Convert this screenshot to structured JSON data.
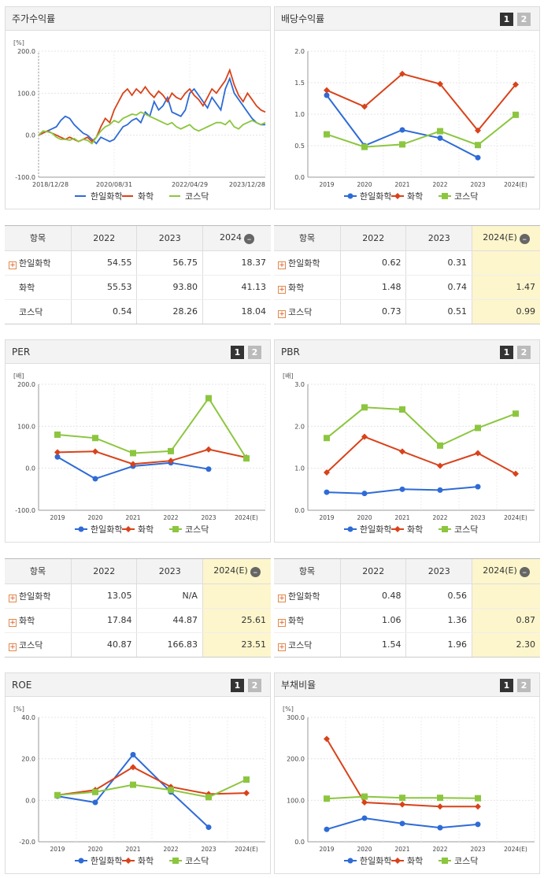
{
  "series_names": [
    "한일화학",
    "화학",
    "코스닥"
  ],
  "colors": {
    "a": "#2e6bd6",
    "b": "#d9421a",
    "c": "#8cc63f"
  },
  "panels": {
    "stock": {
      "title": "주가수익률",
      "unit": "[%]"
    },
    "div": {
      "title": "배당수익률",
      "page1": "1",
      "page2": "2"
    },
    "per": {
      "title": "PER",
      "unit": "[배]",
      "page1": "1",
      "page2": "2"
    },
    "pbr": {
      "title": "PBR",
      "unit": "[배]",
      "page1": "1",
      "page2": "2"
    },
    "roe": {
      "title": "ROE",
      "unit": "[%]",
      "page1": "1",
      "page2": "2"
    },
    "debt": {
      "title": "부채비율",
      "unit": "[%]",
      "page1": "1",
      "page2": "2"
    }
  },
  "tables": {
    "stock": {
      "h": [
        "항목",
        "2022",
        "2023",
        "2024"
      ],
      "rows": [
        [
          "한일화학",
          "54.55",
          "56.75",
          "18.37"
        ],
        [
          "화학",
          "55.53",
          "93.80",
          "41.13"
        ],
        [
          "코스닥",
          "0.54",
          "28.26",
          "18.04"
        ]
      ]
    },
    "div": {
      "h": [
        "항목",
        "2022",
        "2023",
        "2024(E)"
      ],
      "rows": [
        [
          "한일화학",
          "0.62",
          "0.31",
          ""
        ],
        [
          "화학",
          "1.48",
          "0.74",
          "1.47"
        ],
        [
          "코스닥",
          "0.73",
          "0.51",
          "0.99"
        ]
      ]
    },
    "per": {
      "h": [
        "항목",
        "2022",
        "2023",
        "2024(E)"
      ],
      "rows": [
        [
          "한일화학",
          "13.05",
          "N/A",
          ""
        ],
        [
          "화학",
          "17.84",
          "44.87",
          "25.61"
        ],
        [
          "코스닥",
          "40.87",
          "166.83",
          "23.51"
        ]
      ]
    },
    "pbr": {
      "h": [
        "항목",
        "2022",
        "2023",
        "2024(E)"
      ],
      "rows": [
        [
          "한일화학",
          "0.48",
          "0.56",
          ""
        ],
        [
          "화학",
          "1.06",
          "1.36",
          "0.87"
        ],
        [
          "코스닥",
          "1.54",
          "1.96",
          "2.30"
        ]
      ]
    }
  },
  "chart_data": [
    {
      "type": "line",
      "id": "stock",
      "title": "주가수익률",
      "ylabel": "[%]",
      "ylim": [
        -100,
        200
      ],
      "yticks": [
        "200.0",
        "100.0",
        "0.0",
        "-100.0"
      ],
      "xticks": [
        "2018/12/28",
        "2020/08/31",
        "2022/04/29",
        "2023/12/28"
      ],
      "series": [
        {
          "name": "한일화학",
          "values": [
            0,
            5,
            10,
            15,
            20,
            35,
            45,
            40,
            25,
            15,
            5,
            0,
            -10,
            -20,
            -5,
            -10,
            -15,
            -10,
            5,
            20,
            25,
            35,
            40,
            30,
            55,
            45,
            80,
            60,
            70,
            90,
            55,
            50,
            45,
            60,
            100,
            110,
            95,
            80,
            65,
            90,
            75,
            60,
            110,
            135,
            100,
            85,
            70,
            55,
            40,
            30,
            25,
            25
          ]
        },
        {
          "name": "화학",
          "values": [
            0,
            5,
            10,
            5,
            0,
            -5,
            -10,
            -5,
            -10,
            -15,
            -10,
            -5,
            -15,
            -5,
            20,
            40,
            30,
            60,
            80,
            100,
            110,
            95,
            110,
            100,
            115,
            100,
            90,
            105,
            95,
            80,
            100,
            90,
            85,
            100,
            110,
            95,
            85,
            70,
            90,
            110,
            100,
            115,
            130,
            155,
            120,
            95,
            80,
            100,
            85,
            70,
            60,
            55
          ]
        },
        {
          "name": "코스닥",
          "values": [
            0,
            10,
            8,
            5,
            -5,
            -10,
            -10,
            -12,
            -8,
            -15,
            -10,
            -12,
            -20,
            -5,
            10,
            20,
            25,
            35,
            30,
            40,
            45,
            50,
            48,
            55,
            50,
            45,
            40,
            35,
            30,
            25,
            30,
            20,
            15,
            20,
            25,
            15,
            10,
            15,
            20,
            25,
            30,
            30,
            25,
            35,
            20,
            15,
            25,
            30,
            35,
            30,
            25,
            30
          ]
        }
      ]
    },
    {
      "type": "line",
      "id": "div",
      "title": "배당수익률",
      "ylim": [
        0,
        2
      ],
      "yticks": [
        "2.0",
        "1.5",
        "1.0",
        "0.5",
        "0.0"
      ],
      "categories": [
        "2019",
        "2020",
        "2021",
        "2022",
        "2023",
        "2024(E)"
      ],
      "series": [
        {
          "name": "한일화학",
          "values": [
            1.3,
            0.5,
            0.75,
            0.62,
            0.31,
            null
          ]
        },
        {
          "name": "화학",
          "values": [
            1.38,
            1.12,
            1.64,
            1.48,
            0.74,
            1.47
          ]
        },
        {
          "name": "코스닥",
          "values": [
            0.68,
            0.48,
            0.52,
            0.73,
            0.51,
            0.99
          ]
        }
      ]
    },
    {
      "type": "line",
      "id": "per",
      "title": "PER",
      "ylabel": "[배]",
      "ylim": [
        -100,
        200
      ],
      "yticks": [
        "200.0",
        "100.0",
        "0.0",
        "-100.0"
      ],
      "categories": [
        "2019",
        "2020",
        "2021",
        "2022",
        "2023",
        "2024(E)"
      ],
      "series": [
        {
          "name": "한일화학",
          "values": [
            27,
            -25,
            5,
            13.05,
            -2,
            null
          ]
        },
        {
          "name": "화학",
          "values": [
            38,
            40,
            10,
            17.84,
            44.87,
            25.61
          ]
        },
        {
          "name": "코스닥",
          "values": [
            80,
            72,
            36,
            40.87,
            166.83,
            23.51
          ]
        }
      ]
    },
    {
      "type": "line",
      "id": "pbr",
      "title": "PBR",
      "ylabel": "[배]",
      "ylim": [
        0,
        3
      ],
      "yticks": [
        "3.0",
        "2.0",
        "1.0",
        "0.0"
      ],
      "categories": [
        "2019",
        "2020",
        "2021",
        "2022",
        "2023",
        "2024(E)"
      ],
      "series": [
        {
          "name": "한일화학",
          "values": [
            0.43,
            0.4,
            0.5,
            0.48,
            0.56,
            null
          ]
        },
        {
          "name": "화학",
          "values": [
            0.9,
            1.75,
            1.4,
            1.06,
            1.36,
            0.87
          ]
        },
        {
          "name": "코스닥",
          "values": [
            1.72,
            2.45,
            2.4,
            1.54,
            1.96,
            2.3
          ]
        }
      ]
    },
    {
      "type": "line",
      "id": "roe",
      "title": "ROE",
      "ylabel": "[%]",
      "ylim": [
        -20,
        40
      ],
      "yticks": [
        "40.0",
        "20.0",
        "0.0",
        "-20.0"
      ],
      "categories": [
        "2019",
        "2020",
        "2021",
        "2022",
        "2023",
        "2024(E)"
      ],
      "series": [
        {
          "name": "한일화학",
          "values": [
            2,
            -1,
            22,
            4,
            -13,
            null
          ]
        },
        {
          "name": "화학",
          "values": [
            2.5,
            5,
            16,
            6.5,
            3,
            3.5
          ]
        },
        {
          "name": "코스닥",
          "values": [
            2.5,
            4,
            7.5,
            5,
            1.5,
            10
          ]
        }
      ]
    },
    {
      "type": "line",
      "id": "debt",
      "title": "부채비율",
      "ylabel": "[%]",
      "ylim": [
        0,
        300
      ],
      "yticks": [
        "300.0",
        "200.0",
        "100.0",
        "0.0"
      ],
      "categories": [
        "2019",
        "2020",
        "2021",
        "2022",
        "2023",
        "2024(E)"
      ],
      "series": [
        {
          "name": "한일화학",
          "values": [
            30,
            57,
            44,
            34,
            42,
            null
          ]
        },
        {
          "name": "화학",
          "values": [
            248,
            95,
            90,
            85,
            85,
            null
          ]
        },
        {
          "name": "코스닥",
          "values": [
            104,
            109,
            106,
            106,
            105,
            null
          ]
        }
      ]
    }
  ]
}
